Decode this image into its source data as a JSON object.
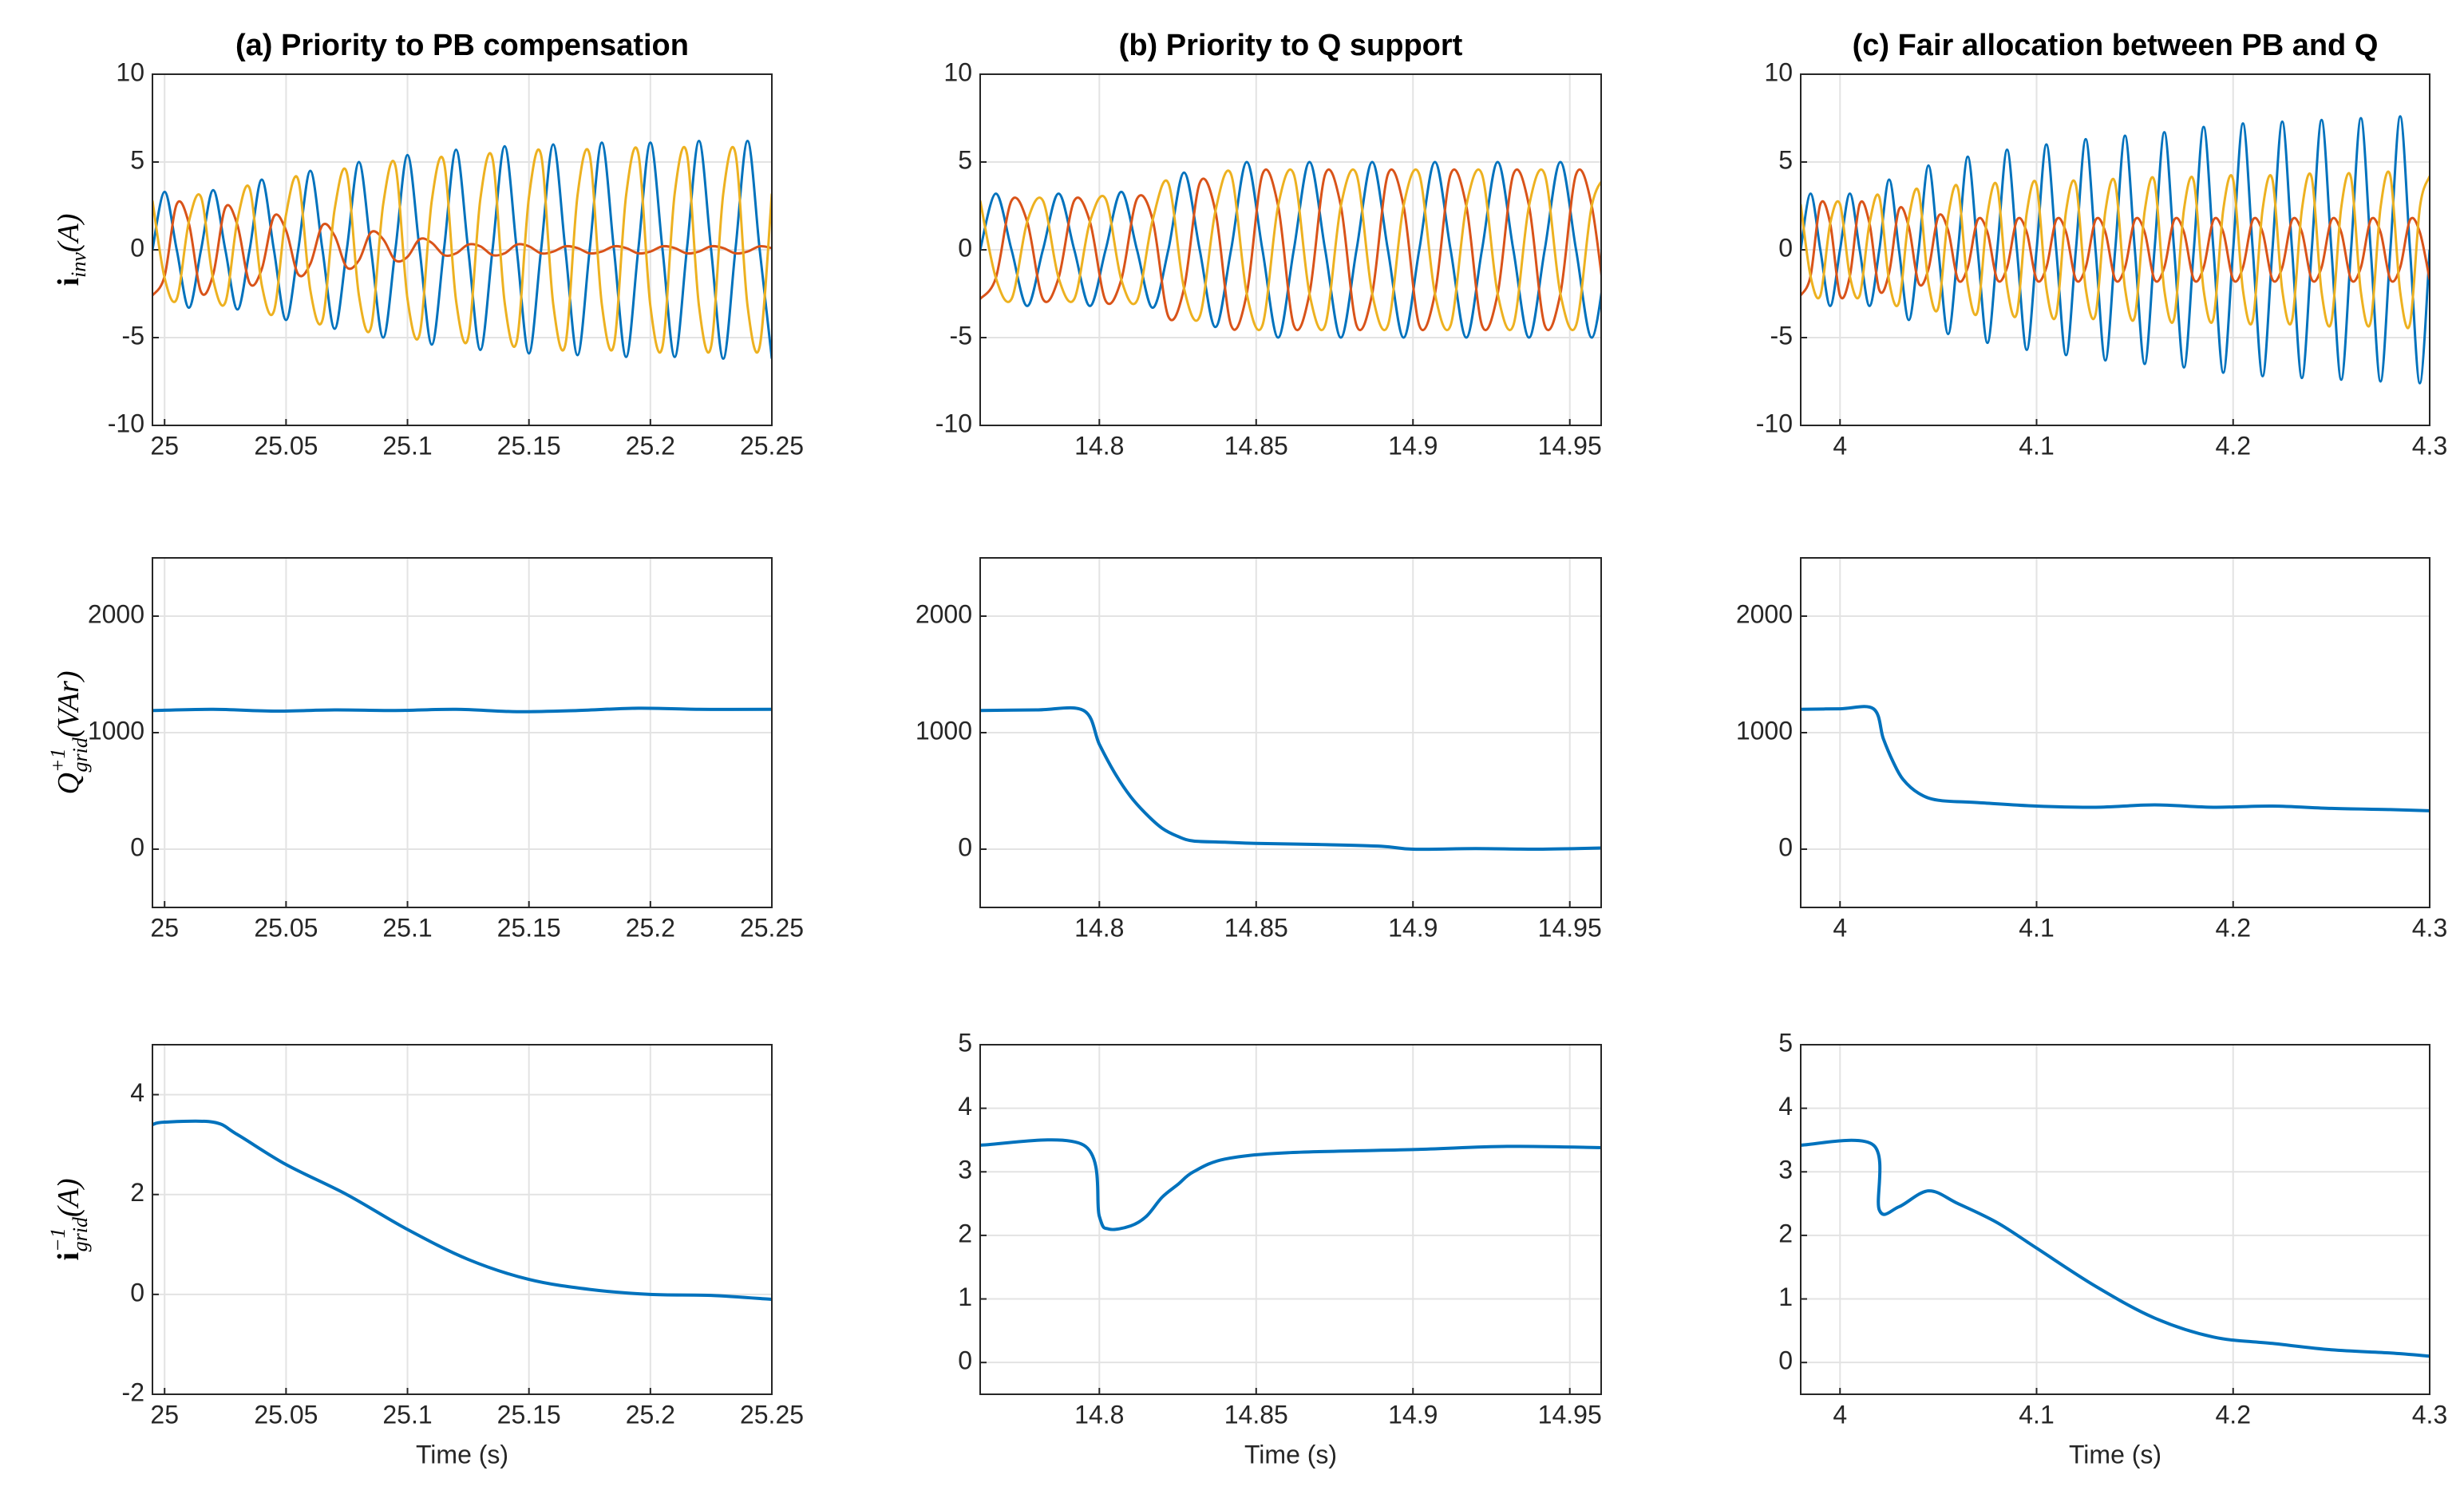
{
  "chart_data": [
    {
      "type": "line",
      "title": "(a) Priority to PB compensation",
      "y_label": {
        "main": "i",
        "sub": "inv",
        "unit": "(A)"
      },
      "x": [
        24.995,
        25,
        25.005,
        25.01,
        25.015,
        25.02,
        25.025,
        25.03,
        25.035,
        25.04,
        25.045,
        25.05,
        25.055,
        25.06,
        25.065,
        25.07,
        25.075,
        25.08,
        25.085,
        25.09,
        25.095,
        25.1,
        25.105,
        25.11,
        25.115,
        25.12,
        25.125,
        25.13,
        25.135,
        25.14,
        25.145,
        25.15,
        25.155,
        25.16,
        25.165,
        25.17,
        25.175,
        25.18,
        25.185,
        25.19,
        25.195,
        25.2,
        25.205,
        25.21,
        25.215,
        25.22,
        25.225,
        25.23,
        25.235,
        25.24,
        25.245,
        25.25
      ],
      "series": [
        {
          "color": "#0072BD",
          "values": [
            0,
            3.3,
            0,
            -3.3,
            0,
            3.4,
            0,
            -3.4,
            0,
            4,
            0,
            -4,
            0,
            4.5,
            0,
            -4.5,
            0,
            5,
            0,
            -5,
            0,
            5.4,
            0,
            -5.4,
            0,
            5.7,
            0,
            -5.7,
            0,
            5.9,
            0,
            -5.9,
            0,
            6,
            0,
            -6,
            0,
            6.1,
            0,
            -6.1,
            0,
            6.1,
            0,
            -6.1,
            0,
            6.2,
            0,
            -6.2,
            0,
            6.2,
            0,
            -6.2
          ]
        },
        {
          "color": "#D95319",
          "values": [
            -2.6,
            -1.5,
            2.6,
            1.5,
            -2.4,
            -1.4,
            2.4,
            1.4,
            -1.9,
            -1.1,
            1.9,
            1.1,
            -1.4,
            -0.8,
            1.4,
            0.8,
            -1,
            -0.6,
            1,
            0.6,
            -0.6,
            -0.4,
            0.6,
            0.4,
            -0.3,
            -0.2,
            0.3,
            0.2,
            -0.3,
            -0.2,
            0.3,
            0.2,
            -0.2,
            -0.1,
            0.2,
            0.1,
            -0.2,
            -0.1,
            0.2,
            0.1,
            -0.2,
            -0.1,
            0.2,
            0.1,
            -0.2,
            -0.1,
            0.2,
            0.1,
            -0.2,
            -0.1,
            0.2,
            0.1
          ]
        },
        {
          "color": "#EDB120",
          "values": [
            2.8,
            -1.6,
            -2.8,
            1.6,
            3,
            -1.7,
            -3,
            1.7,
            3.5,
            -2,
            -3.5,
            2,
            4,
            -2.3,
            -4,
            2.3,
            4.4,
            -2.6,
            -4.4,
            2.6,
            4.8,
            -2.8,
            -4.8,
            2.8,
            5,
            -2.9,
            -5,
            2.9,
            5.2,
            -3,
            -5.2,
            3,
            5.4,
            -3.1,
            -5.4,
            3.1,
            5.4,
            -3.1,
            -5.4,
            3.1,
            5.5,
            -3.2,
            -5.5,
            3.2,
            5.5,
            -3.2,
            -5.5,
            3.2,
            5.5,
            -3.2,
            -5.5,
            3.2
          ]
        }
      ],
      "xlim": [
        24.995,
        25.25
      ],
      "ylim": [
        -10,
        10
      ],
      "xticks": [
        25,
        25.05,
        25.1,
        25.15,
        25.2,
        25.25
      ],
      "yticks": [
        -10,
        -5,
        0,
        5,
        10
      ],
      "grid": true
    },
    {
      "type": "line",
      "title": "(b) Priority to Q support",
      "x": [
        14.762,
        14.767,
        14.772,
        14.777,
        14.782,
        14.787,
        14.792,
        14.797,
        14.802,
        14.807,
        14.812,
        14.817,
        14.822,
        14.827,
        14.832,
        14.837,
        14.842,
        14.847,
        14.852,
        14.857,
        14.862,
        14.867,
        14.872,
        14.877,
        14.882,
        14.887,
        14.892,
        14.897,
        14.902,
        14.907,
        14.912,
        14.917,
        14.922,
        14.927,
        14.932,
        14.937,
        14.942,
        14.947,
        14.952,
        14.957,
        14.962
      ],
      "series": [
        {
          "color": "#0072BD",
          "values": [
            0,
            3.2,
            0,
            -3.2,
            0,
            3.2,
            0,
            -3.2,
            0,
            3.3,
            0,
            -3.3,
            0,
            4.4,
            0,
            -4.4,
            0,
            5,
            0,
            -5,
            0,
            5,
            0,
            -5,
            0,
            5,
            0,
            -5,
            0,
            5,
            0,
            -5,
            0,
            5,
            0,
            -5,
            0,
            5,
            0,
            -5,
            0
          ]
        },
        {
          "color": "#D95319",
          "values": [
            -2.8,
            -1.6,
            2.8,
            1.6,
            -2.8,
            -1.6,
            2.8,
            1.6,
            -2.9,
            -1.7,
            2.9,
            1.7,
            -3.8,
            -2.2,
            3.8,
            2.2,
            -4.3,
            -2.5,
            4.3,
            2.5,
            -4.3,
            -2.5,
            4.3,
            2.5,
            -4.3,
            -2.5,
            4.3,
            2.5,
            -4.3,
            -2.5,
            4.3,
            2.5,
            -4.3,
            -2.5,
            4.3,
            2.5,
            -4.3,
            -2.5,
            4.3,
            2.5,
            -4.3
          ]
        },
        {
          "color": "#EDB120",
          "values": [
            2.8,
            -1.6,
            -2.8,
            1.6,
            2.8,
            -1.6,
            -2.8,
            1.6,
            2.9,
            -1.7,
            -2.9,
            1.7,
            3.8,
            -2.2,
            -3.8,
            2.2,
            4.3,
            -2.5,
            -4.3,
            2.5,
            4.3,
            -2.5,
            -4.3,
            2.5,
            4.3,
            -2.5,
            -4.3,
            2.5,
            4.3,
            -2.5,
            -4.3,
            2.5,
            4.3,
            -2.5,
            -4.3,
            2.5,
            4.3,
            -2.5,
            -4.3,
            2.5,
            4.3
          ]
        }
      ],
      "xlim": [
        14.762,
        14.96
      ],
      "ylim": [
        -10,
        10
      ],
      "xticks": [
        14.8,
        14.85,
        14.9,
        14.95
      ],
      "yticks": [
        -10,
        -5,
        0,
        5,
        10
      ],
      "grid": true
    },
    {
      "type": "line",
      "title": "(c) Fair allocation between PB and Q",
      "x": [
        3.98,
        3.985,
        3.99,
        3.995,
        4,
        4.005,
        4.01,
        4.015,
        4.02,
        4.025,
        4.03,
        4.035,
        4.04,
        4.045,
        4.05,
        4.055,
        4.06,
        4.065,
        4.07,
        4.075,
        4.08,
        4.085,
        4.09,
        4.095,
        4.1,
        4.105,
        4.11,
        4.115,
        4.12,
        4.125,
        4.13,
        4.135,
        4.14,
        4.145,
        4.15,
        4.155,
        4.16,
        4.165,
        4.17,
        4.175,
        4.18,
        4.185,
        4.19,
        4.195,
        4.2,
        4.205,
        4.21,
        4.215,
        4.22,
        4.225,
        4.23,
        4.235,
        4.24,
        4.245,
        4.25,
        4.255,
        4.26,
        4.265,
        4.27,
        4.275,
        4.28,
        4.285,
        4.29,
        4.295,
        4.3
      ],
      "series": [
        {
          "color": "#0072BD",
          "values": [
            0,
            3.2,
            0,
            -3.2,
            0,
            3.2,
            0,
            -3.2,
            0,
            4,
            0,
            -4,
            0,
            4.8,
            0,
            -4.8,
            0,
            5.3,
            0,
            -5.3,
            0,
            5.7,
            0,
            -5.7,
            0,
            6,
            0,
            -6,
            0,
            6.3,
            0,
            -6.3,
            0,
            6.5,
            0,
            -6.5,
            0,
            6.7,
            0,
            -6.7,
            0,
            7,
            0,
            -7,
            0,
            7.2,
            0,
            -7.2,
            0,
            7.3,
            0,
            -7.3,
            0,
            7.4,
            0,
            -7.4,
            0,
            7.5,
            0,
            -7.5,
            0,
            7.6,
            0,
            -7.6,
            0
          ]
        },
        {
          "color": "#D95319",
          "values": [
            -2.6,
            -1.5,
            2.6,
            1.5,
            -2.6,
            -1.5,
            2.6,
            1.5,
            -2.3,
            -1.3,
            2.3,
            1.3,
            -1.9,
            -1.1,
            1.9,
            1.1,
            -1.7,
            -1,
            1.7,
            1,
            -1.7,
            -1,
            1.7,
            1,
            -1.7,
            -1,
            1.7,
            1,
            -1.7,
            -1,
            1.7,
            1,
            -1.7,
            -1,
            1.7,
            1,
            -1.7,
            -1,
            1.7,
            1,
            -1.7,
            -1,
            1.7,
            1,
            -1.7,
            -1,
            1.7,
            1,
            -1.7,
            -1,
            1.7,
            1,
            -1.7,
            -1,
            1.7,
            1,
            -1.7,
            -1,
            1.7,
            1,
            -1.7,
            -1,
            1.7,
            1,
            -1.7
          ]
        },
        {
          "color": "#EDB120",
          "values": [
            2.6,
            -1.5,
            -2.6,
            1.5,
            2.6,
            -1.5,
            -2.6,
            1.5,
            3,
            -1.8,
            -3,
            1.8,
            3.3,
            -1.9,
            -3.3,
            1.9,
            3.5,
            -2,
            -3.5,
            2,
            3.6,
            -2.1,
            -3.6,
            2.1,
            3.7,
            -2.2,
            -3.7,
            2.2,
            3.7,
            -2.2,
            -3.7,
            2.2,
            3.8,
            -2.2,
            -3.8,
            2.2,
            3.9,
            -2.3,
            -3.9,
            2.3,
            3.9,
            -2.3,
            -3.9,
            2.3,
            4,
            -2.3,
            -4,
            2.3,
            4,
            -2.3,
            -4,
            2.3,
            4.1,
            -2.4,
            -4.1,
            2.4,
            4.1,
            -2.4,
            -4.1,
            2.4,
            4.2,
            -2.4,
            -4.2,
            2.4,
            4.2
          ]
        }
      ],
      "xlim": [
        3.98,
        4.3
      ],
      "ylim": [
        -10,
        10
      ],
      "xticks": [
        4,
        4.1,
        4.2,
        4.3
      ],
      "yticks": [
        -10,
        -5,
        0,
        5,
        10
      ],
      "grid": true
    },
    {
      "type": "line",
      "y_label": {
        "main": "Q",
        "sup": "+1",
        "sub": "grid",
        "unit": "(VAr)"
      },
      "x": [
        24.995,
        25.02,
        25.045,
        25.07,
        25.095,
        25.12,
        25.145,
        25.17,
        25.195,
        25.22,
        25.25
      ],
      "series": [
        {
          "color": "#0072BD",
          "values": [
            1190,
            1200,
            1185,
            1195,
            1190,
            1200,
            1180,
            1190,
            1210,
            1200,
            1200
          ]
        }
      ],
      "xlim": [
        24.995,
        25.25
      ],
      "ylim": [
        -500,
        2500
      ],
      "xticks": [
        25,
        25.05,
        25.1,
        25.15,
        25.2,
        25.25
      ],
      "yticks": [
        0,
        1000,
        2000
      ],
      "grid": true
    },
    {
      "type": "line",
      "x": [
        14.762,
        14.78,
        14.795,
        14.8,
        14.805,
        14.81,
        14.815,
        14.82,
        14.825,
        14.83,
        14.84,
        14.85,
        14.87,
        14.89,
        14.9,
        14.92,
        14.94,
        14.96
      ],
      "series": [
        {
          "color": "#0072BD",
          "values": [
            1190,
            1195,
            1190,
            900,
            650,
            450,
            300,
            180,
            110,
            70,
            60,
            50,
            40,
            25,
            0,
            5,
            0,
            10
          ]
        }
      ],
      "xlim": [
        14.762,
        14.96
      ],
      "ylim": [
        -500,
        2500
      ],
      "xticks": [
        14.8,
        14.85,
        14.9,
        14.95
      ],
      "yticks": [
        0,
        1000,
        2000
      ],
      "grid": true
    },
    {
      "type": "line",
      "x": [
        3.98,
        4,
        4.017,
        4.022,
        4.027,
        4.032,
        4.04,
        4.05,
        4.07,
        4.1,
        4.13,
        4.16,
        4.19,
        4.22,
        4.25,
        4.28,
        4.3
      ],
      "series": [
        {
          "color": "#0072BD",
          "values": [
            1200,
            1205,
            1205,
            950,
            750,
            600,
            480,
            420,
            400,
            370,
            360,
            380,
            360,
            370,
            350,
            340,
            330
          ]
        }
      ],
      "xlim": [
        3.98,
        4.3
      ],
      "ylim": [
        -500,
        2500
      ],
      "xticks": [
        4,
        4.1,
        4.2,
        4.3
      ],
      "yticks": [
        0,
        1000,
        2000
      ],
      "grid": true
    },
    {
      "type": "line",
      "x_label": "Time (s)",
      "y_label": {
        "main": "i",
        "sup": "−1",
        "sub": "grid",
        "unit": "(A)"
      },
      "x": [
        24.995,
        25,
        25.02,
        25.03,
        25.05,
        25.075,
        25.1,
        25.125,
        25.15,
        25.175,
        25.2,
        25.225,
        25.25
      ],
      "series": [
        {
          "color": "#0072BD",
          "values": [
            3.4,
            3.45,
            3.45,
            3.2,
            2.6,
            2,
            1.3,
            0.7,
            0.3,
            0.1,
            0,
            -0.02,
            -0.1
          ]
        }
      ],
      "xlim": [
        24.995,
        25.25
      ],
      "ylim": [
        -2,
        5
      ],
      "xticks": [
        25,
        25.05,
        25.1,
        25.15,
        25.2,
        25.25
      ],
      "yticks": [
        -2,
        0,
        2,
        4
      ],
      "grid": true
    },
    {
      "type": "line",
      "x_label": "Time (s)",
      "x": [
        14.762,
        14.795,
        14.8,
        14.803,
        14.81,
        14.815,
        14.82,
        14.825,
        14.83,
        14.84,
        14.86,
        14.9,
        14.93,
        14.96
      ],
      "series": [
        {
          "color": "#0072BD",
          "values": [
            3.42,
            3.42,
            2.3,
            2.1,
            2.15,
            2.3,
            2.6,
            2.8,
            3,
            3.2,
            3.3,
            3.35,
            3.4,
            3.38
          ]
        }
      ],
      "xlim": [
        14.762,
        14.96
      ],
      "ylim": [
        -0.5,
        5
      ],
      "xticks": [
        14.8,
        14.85,
        14.9,
        14.95
      ],
      "yticks": [
        0,
        1,
        2,
        3,
        4,
        5
      ],
      "grid": true
    },
    {
      "type": "line",
      "x_label": "Time (s)",
      "x": [
        3.98,
        4.017,
        4.02,
        4.03,
        4.045,
        4.06,
        4.08,
        4.1,
        4.13,
        4.16,
        4.19,
        4.22,
        4.25,
        4.28,
        4.3
      ],
      "series": [
        {
          "color": "#0072BD",
          "values": [
            3.42,
            3.42,
            2.4,
            2.45,
            2.7,
            2.5,
            2.2,
            1.8,
            1.2,
            0.7,
            0.4,
            0.3,
            0.2,
            0.15,
            0.1
          ]
        }
      ],
      "xlim": [
        3.98,
        4.3
      ],
      "ylim": [
        -0.5,
        5
      ],
      "xticks": [
        4,
        4.1,
        4.2,
        4.3
      ],
      "yticks": [
        0,
        1,
        2,
        3,
        4,
        5
      ],
      "grid": true
    }
  ]
}
